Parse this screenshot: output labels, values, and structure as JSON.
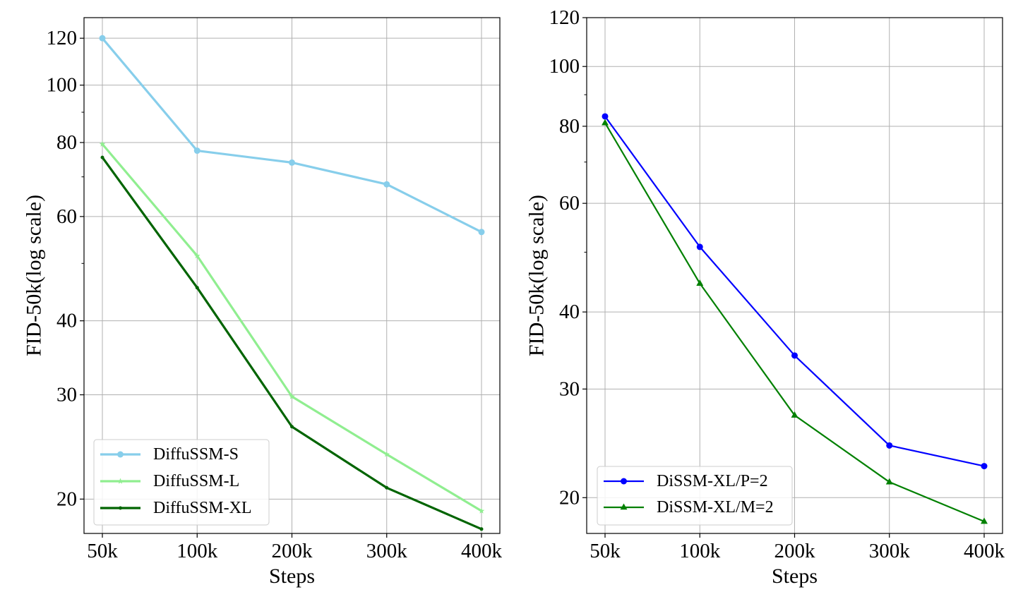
{
  "chart_data": [
    {
      "type": "line",
      "xlabel": "Steps",
      "ylabel": "FID-50k(log scale)",
      "yscale": "log",
      "x": [
        "50k",
        "100k",
        "200k",
        "300k",
        "400k"
      ],
      "ylim": [
        17.5,
        130
      ],
      "yticks": [
        20,
        30,
        40,
        60,
        80,
        100,
        120
      ],
      "grid": true,
      "legend_position": "lower-left",
      "series": [
        {
          "name": "DiffuSSM-S",
          "values": [
            120,
            77.5,
            74,
            68,
            56.5
          ],
          "color": "#87ceeb",
          "marker": "circle"
        },
        {
          "name": "DiffuSSM-L",
          "values": [
            79.5,
            51.5,
            29.8,
            23.8,
            19.1
          ],
          "color": "#90ee90",
          "marker": "star"
        },
        {
          "name": "DiffuSSM-XL",
          "values": [
            75.5,
            45.5,
            26.5,
            20.9,
            17.8
          ],
          "color": "#006400",
          "marker": "dot"
        }
      ]
    },
    {
      "type": "line",
      "xlabel": "Steps",
      "ylabel": "FID-50k(log scale)",
      "yscale": "log",
      "x": [
        "50k",
        "100k",
        "200k",
        "300k",
        "400k"
      ],
      "ylim": [
        17.5,
        120
      ],
      "yticks": [
        20,
        30,
        40,
        60,
        80,
        100,
        120
      ],
      "grid": true,
      "legend_position": "lower-left",
      "series": [
        {
          "name": "DiSSM-XL/P=2",
          "values": [
            83,
            51,
            34,
            24.3,
            22.5
          ],
          "color": "#0000ff",
          "marker": "circle"
        },
        {
          "name": "DiSSM-XL/M=2",
          "values": [
            81,
            44.5,
            27.2,
            21.2,
            18.3
          ],
          "color": "#008000",
          "marker": "triangle"
        }
      ]
    }
  ]
}
